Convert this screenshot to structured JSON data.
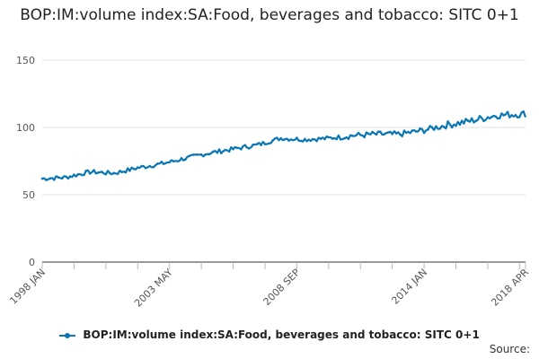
{
  "chart_data": {
    "type": "line",
    "title": "BOP:IM:volume index:SA:Food, beverages and tobacco: SITC 0+1",
    "xlabel": "",
    "ylabel": "",
    "ylim": [
      0,
      150
    ],
    "yticks": [
      "0",
      "50",
      "100",
      "150"
    ],
    "xtick_labels": [
      "1998 JAN",
      "2003 MAY",
      "2008 SEP",
      "2014 JAN",
      "2018 APR"
    ],
    "x_start": "1998 JAN",
    "x_end": "2018 APR",
    "frequency": "monthly",
    "legend_position": "bottom",
    "series": [
      {
        "name": "BOP:IM:volume index:SA:Food, beverages and tobacco: SITC 0+1",
        "color": "#0a77b5",
        "anchor_points": [
          {
            "month": 0,
            "value": 62
          },
          {
            "month": 12,
            "value": 63
          },
          {
            "month": 24,
            "value": 67
          },
          {
            "month": 36,
            "value": 66
          },
          {
            "month": 48,
            "value": 70
          },
          {
            "month": 60,
            "value": 73
          },
          {
            "month": 72,
            "value": 77
          },
          {
            "month": 84,
            "value": 81
          },
          {
            "month": 96,
            "value": 84
          },
          {
            "month": 108,
            "value": 87
          },
          {
            "month": 120,
            "value": 92
          },
          {
            "month": 132,
            "value": 91
          },
          {
            "month": 144,
            "value": 92
          },
          {
            "month": 156,
            "value": 94
          },
          {
            "month": 168,
            "value": 95
          },
          {
            "month": 180,
            "value": 95
          },
          {
            "month": 192,
            "value": 98
          },
          {
            "month": 204,
            "value": 102
          },
          {
            "month": 216,
            "value": 105
          },
          {
            "month": 228,
            "value": 109
          },
          {
            "month": 243,
            "value": 110
          }
        ]
      }
    ]
  },
  "legend": {
    "label": "BOP:IM:volume index:SA:Food, beverages and tobacco: SITC 0+1"
  },
  "source": {
    "label": "Source:"
  }
}
